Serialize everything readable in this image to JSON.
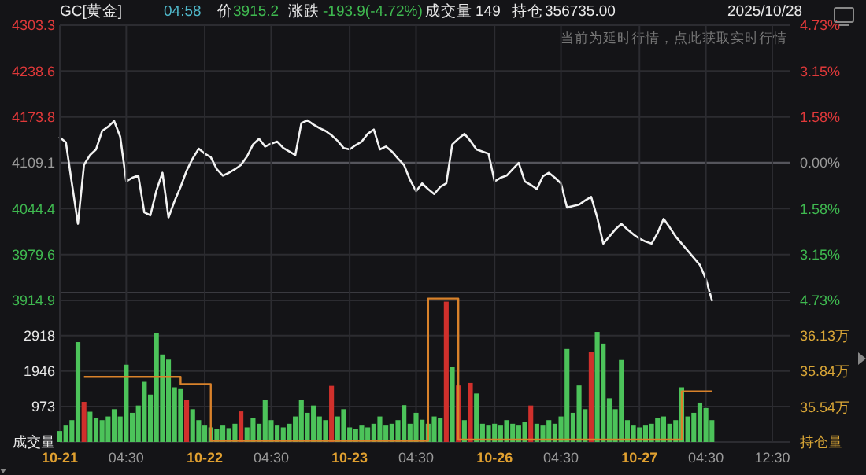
{
  "chart_data": [
    {
      "type": "line",
      "title": "GC[黄金]",
      "annotations": [
        "04:58",
        "价",
        "3915.2",
        "涨跌",
        "-193.9(-4.72%)",
        "成交量",
        "149",
        "持仓",
        "356735.00",
        "2025/10/28",
        "当前为延时行情，点此获取实时行情"
      ],
      "categories": [
        null,
        null,
        null,
        null,
        null,
        null,
        null,
        null,
        null,
        null,
        null,
        null,
        null,
        null,
        null,
        null,
        null,
        null,
        null,
        null,
        null,
        null,
        null,
        null,
        null,
        null,
        null,
        null,
        null,
        null,
        null,
        null,
        null,
        null,
        null,
        null,
        null,
        null,
        null,
        null,
        null,
        null,
        null,
        null,
        null,
        null,
        null,
        null,
        null,
        null,
        null,
        null,
        null,
        null,
        null,
        null,
        null,
        null,
        null,
        null,
        null,
        null,
        null,
        null,
        null,
        null,
        null,
        null,
        null,
        null,
        null,
        null,
        null,
        null,
        null,
        null,
        null,
        null,
        null,
        null,
        null,
        null,
        null,
        null,
        null,
        null,
        null,
        null,
        null,
        null,
        null,
        null,
        null,
        null,
        null,
        null,
        null,
        null,
        null,
        null,
        null,
        null,
        null,
        null,
        null,
        null,
        null,
        null,
        null,
        null,
        null,
        null,
        null,
        null,
        null,
        null,
        null,
        null,
        null,
        null,
        null,
        null
      ],
      "ylim": [
        3914.9,
        4303.3
      ],
      "yticks": [
        3914.9,
        3979.6,
        4044.4,
        4109.1,
        4173.8,
        4238.6,
        4303.3
      ],
      "y2lim": [
        -4.73,
        4.73
      ],
      "y2ticks": [
        {
          "value": -4.73,
          "label": "4.73%"
        },
        {
          "value": -3.15,
          "label": "3.15%"
        },
        {
          "value": -1.58,
          "label": "1.58%"
        },
        {
          "value": 0,
          "label": "0.00%"
        },
        {
          "value": 1.58,
          "label": "1.58%"
        },
        {
          "value": 3.15,
          "label": "3.15%"
        },
        {
          "value": 4.73,
          "label": "4.73%"
        }
      ],
      "tick_labels": "y",
      "grid": "y",
      "ref_lines": [
        {
          "axis": "y",
          "value": 4109.1
        }
      ],
      "series": [
        {
          "color": "#f2f2f2",
          "values": [
            4145,
            4138,
            4080,
            4023,
            4106,
            4120,
            4128,
            4154,
            4160,
            4168,
            4146,
            4083,
            4088,
            4091,
            4039,
            4035,
            4070,
            4095,
            4032,
            4055,
            4075,
            4098,
            4115,
            4129,
            4122,
            4117,
            4100,
            4091,
            4095,
            4100,
            4106,
            4118,
            4135,
            4143,
            4132,
            4136,
            4139,
            4130,
            4125,
            4120,
            4165,
            4169,
            4163,
            4158,
            4154,
            4148,
            4140,
            4130,
            4128,
            4134,
            4139,
            4150,
            4156,
            4128,
            4132,
            4125,
            4115,
            4106,
            4085,
            4069,
            4080,
            4072,
            4065,
            4075,
            4080,
            4135,
            4143,
            4150,
            4140,
            4128,
            4125,
            4122,
            4083,
            4088,
            4091,
            4100,
            4109,
            4083,
            4078,
            4072,
            4090,
            4095,
            4088,
            4080,
            4046,
            4048,
            4050,
            4056,
            4061,
            4032,
            3995,
            4005,
            4015,
            4023,
            4015,
            4008,
            4002,
            3998,
            3995,
            4010,
            4030,
            4018,
            4005,
            3995,
            3985,
            3975,
            3965,
            3945,
            3915,
            null,
            null,
            null,
            null,
            null,
            null,
            null,
            null,
            null,
            null,
            null,
            null,
            null
          ]
        }
      ]
    },
    {
      "type": "bar",
      "categories": [
        "10-21",
        null,
        null,
        null,
        null,
        null,
        null,
        null,
        null,
        null,
        null,
        "04:30",
        null,
        null,
        null,
        null,
        null,
        null,
        null,
        null,
        null,
        null,
        null,
        null,
        "10-22",
        null,
        null,
        null,
        null,
        null,
        null,
        null,
        null,
        null,
        null,
        "04:30",
        null,
        null,
        null,
        null,
        null,
        null,
        null,
        null,
        null,
        null,
        null,
        null,
        "10-23",
        null,
        null,
        null,
        null,
        null,
        null,
        null,
        null,
        null,
        null,
        "04:30",
        null,
        null,
        null,
        null,
        null,
        null,
        null,
        null,
        null,
        null,
        null,
        null,
        "10-26",
        null,
        null,
        null,
        null,
        null,
        null,
        null,
        null,
        null,
        null,
        "04:30",
        null,
        null,
        null,
        null,
        null,
        null,
        null,
        null,
        null,
        null,
        null,
        null,
        "10-27",
        null,
        null,
        null,
        null,
        null,
        null,
        null,
        null,
        null,
        null,
        "04:30",
        null,
        null,
        null,
        null,
        null,
        null,
        null,
        null,
        null,
        null,
        "12:30",
        null,
        null,
        null
      ],
      "ylim": [
        0,
        4100
      ],
      "yticks": [
        {
          "value": 0,
          "label": "成交量"
        },
        973,
        1946,
        2918
      ],
      "y2lim": [
        35.25,
        36.49
      ],
      "y2ticks": [
        {
          "value": 35.25,
          "label": "持仓量"
        },
        {
          "value": 35.54,
          "label": "35.54万"
        },
        {
          "value": 35.84,
          "label": "35.84万"
        },
        {
          "value": 36.13,
          "label": "36.13万"
        }
      ],
      "grid": true,
      "series": [
        {
          "color": "#4cc35a",
          "values": [
            300,
            450,
            600,
            2740,
            null,
            830,
            650,
            600,
            700,
            900,
            700,
            2120,
            800,
            1000,
            1650,
            1300,
            2990,
            2400,
            2260,
            1500,
            1450,
            null,
            900,
            600,
            450,
            400,
            350,
            450,
            380,
            500,
            null,
            400,
            650,
            500,
            1160,
            600,
            450,
            400,
            500,
            700,
            1150,
            800,
            1000,
            700,
            600,
            null,
            700,
            900,
            400,
            350,
            450,
            400,
            500,
            700,
            450,
            500,
            600,
            1010,
            500,
            800,
            610,
            500,
            700,
            650,
            null,
            2050,
            null,
            600,
            null,
            1330,
            500,
            450,
            500,
            450,
            600,
            500,
            450,
            550,
            null,
            500,
            450,
            600,
            500,
            700,
            2550,
            800,
            1550,
            900,
            null,
            3020,
            2700,
            1200,
            900,
            2250,
            600,
            450,
            400,
            450,
            500,
            650,
            700,
            500,
            600,
            1500,
            700,
            800,
            1080,
            930,
            600,
            null,
            null,
            null,
            null,
            null,
            null,
            null,
            null,
            null,
            null,
            null,
            null,
            null
          ]
        },
        {
          "color": "#d0302c",
          "values": [
            null,
            null,
            null,
            null,
            1100,
            null,
            null,
            null,
            null,
            null,
            null,
            null,
            null,
            null,
            null,
            null,
            null,
            null,
            null,
            null,
            null,
            1160,
            null,
            null,
            null,
            null,
            null,
            null,
            null,
            null,
            840,
            null,
            null,
            null,
            null,
            null,
            null,
            null,
            null,
            null,
            null,
            null,
            null,
            null,
            null,
            1540,
            null,
            null,
            null,
            null,
            null,
            null,
            null,
            null,
            null,
            null,
            null,
            null,
            null,
            null,
            null,
            null,
            null,
            null,
            3850,
            null,
            1550,
            null,
            1620,
            null,
            null,
            null,
            null,
            null,
            null,
            null,
            null,
            null,
            1000,
            null,
            null,
            null,
            null,
            null,
            null,
            null,
            null,
            null,
            2480,
            null,
            null,
            null,
            null,
            null,
            null,
            null,
            null,
            null,
            null,
            null,
            null,
            null,
            null,
            null,
            null,
            null,
            null,
            null,
            null,
            null,
            null,
            null,
            null,
            null,
            null,
            null,
            null,
            null,
            null,
            null,
            null,
            null
          ]
        },
        {
          "type": "step",
          "axis": "y2",
          "color": "#d9822b",
          "values": [
            null,
            null,
            null,
            null,
            35.79,
            35.79,
            35.79,
            35.79,
            35.79,
            35.79,
            35.79,
            35.79,
            35.79,
            35.79,
            35.79,
            35.79,
            35.79,
            35.79,
            35.79,
            35.79,
            35.73,
            35.73,
            35.73,
            35.73,
            35.73,
            35.26,
            35.26,
            35.26,
            35.26,
            35.26,
            35.26,
            35.26,
            35.26,
            35.26,
            35.26,
            35.26,
            35.26,
            35.26,
            35.26,
            35.26,
            35.26,
            35.26,
            35.26,
            35.26,
            35.26,
            35.26,
            35.26,
            35.26,
            35.26,
            35.26,
            35.26,
            35.26,
            35.26,
            35.26,
            35.26,
            35.26,
            35.26,
            35.26,
            35.26,
            35.26,
            35.26,
            36.44,
            36.44,
            36.44,
            36.44,
            36.44,
            35.27,
            35.27,
            35.27,
            35.27,
            35.27,
            35.27,
            35.27,
            35.27,
            35.27,
            35.27,
            35.27,
            35.27,
            35.27,
            35.27,
            35.27,
            35.27,
            35.27,
            35.27,
            35.27,
            35.27,
            35.27,
            35.27,
            35.27,
            35.27,
            35.27,
            35.27,
            35.27,
            35.27,
            35.27,
            35.27,
            35.27,
            35.27,
            35.27,
            35.27,
            35.27,
            35.27,
            35.27,
            35.67,
            35.67,
            35.67,
            35.67,
            35.67,
            35.67,
            null,
            null,
            null,
            null,
            null,
            null,
            null,
            null,
            null,
            null,
            null,
            null,
            null
          ]
        }
      ]
    }
  ]
}
